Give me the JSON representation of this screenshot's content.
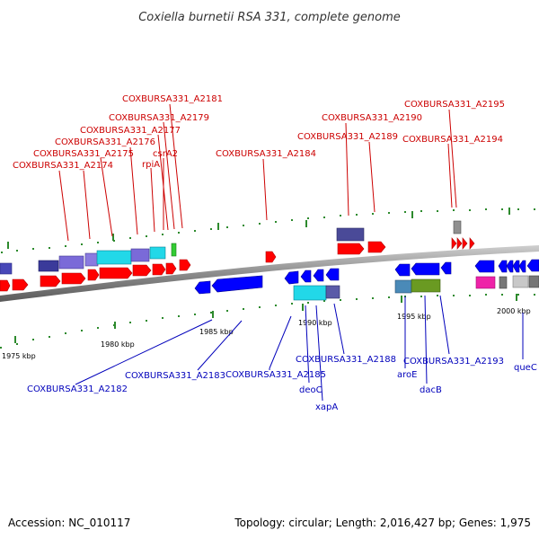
{
  "title": "Coxiella burnetii RSA 331, complete genome",
  "footer": {
    "accession": "Accession: NC_010117",
    "summary": "Topology: circular; Length: 2,016,427 bp; Genes: 1,975"
  },
  "ticks": [
    "1975 kbp",
    "1980 kbp",
    "1985 kbp",
    "1990 kbp",
    "1995 kbp",
    "2000 kbp"
  ],
  "forward_labels": [
    "COXBURSA331_A2181",
    "COXBURSA331_A2179",
    "COXBURSA331_A2177",
    "COXBURSA331_A2176",
    "COXBURSA331_A2175",
    "COXBURSA331_A2174",
    "rpiA",
    "csrA2",
    "COXBURSA331_A2184",
    "COXBURSA331_A2190",
    "COXBURSA331_A2189",
    "COXBURSA331_A2195",
    "COXBURSA331_A2194"
  ],
  "reverse_labels": [
    "COXBURSA331_A2182",
    "COXBURSA331_A2183",
    "COXBURSA331_A2185",
    "COXBURSA331_A2188",
    "deoC",
    "xapA",
    "aroE",
    "dacB",
    "COXBURSA331_A2193",
    "queC"
  ],
  "colors": {
    "forward_label": "#cc0000",
    "reverse_label": "#0000bb",
    "backbone": "#8c8c8c"
  }
}
